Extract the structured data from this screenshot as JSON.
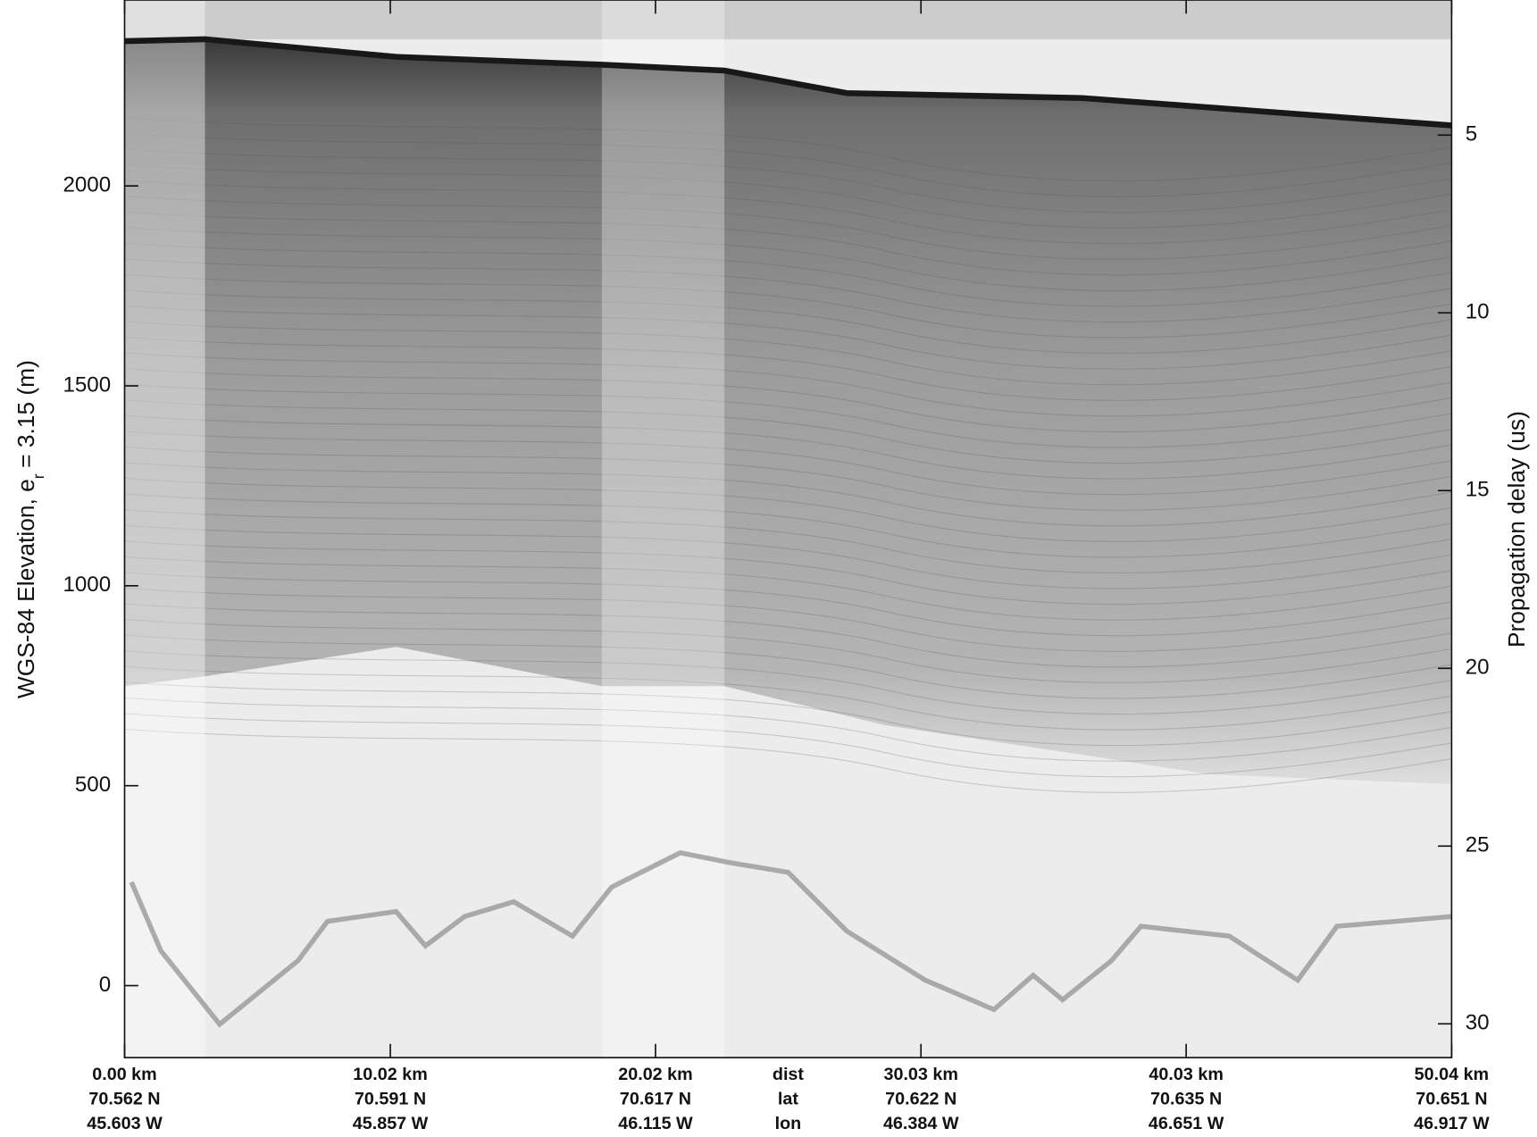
{
  "chart_data": {
    "type": "echogram",
    "ylabel": "WGS-84 Elevation, e",
    "ylabel_sub": "r",
    "ylabel_end": "= 3.15 (m)",
    "y2label": "Propagation delay (us)",
    "xlim": [
      0,
      50.04
    ],
    "xticks": [
      {
        "value": 0,
        "label": "0.00 km"
      },
      {
        "value": 10.02,
        "label": "10.02 km"
      },
      {
        "value": 20.02,
        "label": "20.02 km"
      },
      {
        "value": 30.03,
        "label": "30.03 km"
      },
      {
        "value": 40.03,
        "label": "40.03 km"
      },
      {
        "value": 50.04,
        "label": "50.04 km"
      }
    ],
    "lat_labels": [
      "70.562 N",
      "70.591 N",
      "70.617 N",
      "70.622 N",
      "70.635 N",
      "70.651 N"
    ],
    "lon_labels": [
      "45.603 W",
      "45.857 W",
      "46.115 W",
      "46.384 W",
      "46.651 W",
      "46.917 W"
    ],
    "row_labels": [
      "dist",
      "lat",
      "lon"
    ],
    "ylim": [
      -180,
      2465
    ],
    "yticks": [
      0,
      500,
      1000,
      1500,
      2000
    ],
    "y2lim": [
      30.95,
      1.2
    ],
    "y2ticks": [
      5,
      10,
      15,
      20,
      25,
      30
    ]
  }
}
